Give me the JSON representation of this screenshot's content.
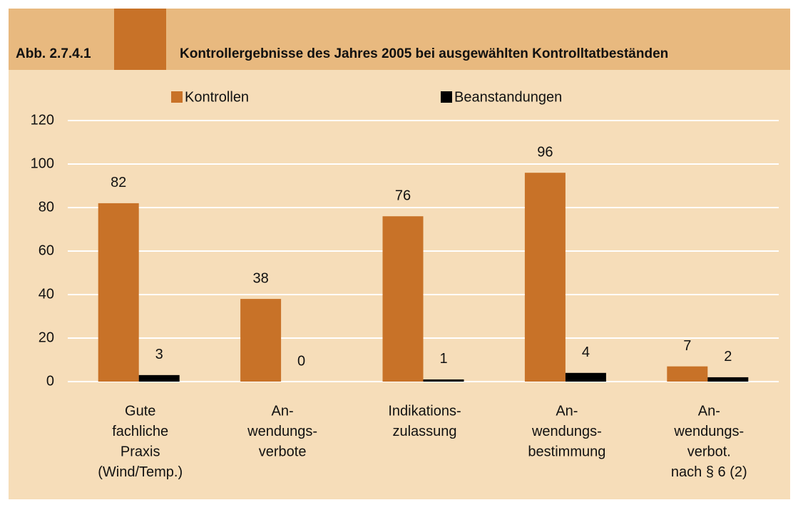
{
  "chart_data": {
    "type": "bar",
    "figure_label": "Abb. 2.7.4.1",
    "title": "Kontrollergebnisse des Jahres 2005 bei ausgewählten Kontrolltatbeständen",
    "categories": [
      [
        "Gute",
        "fachliche",
        "Praxis",
        "(Wind/Temp.)"
      ],
      [
        "An-",
        "wendungs-",
        "verbote"
      ],
      [
        "Indikations-",
        "zulassung"
      ],
      [
        "An-",
        "wendungs-",
        "bestimmung"
      ],
      [
        "An-",
        "wendungs-",
        "verbot.",
        "nach § 6 (2)"
      ]
    ],
    "series": [
      {
        "name": "Kontrollen",
        "color": "#c87228",
        "values": [
          82,
          38,
          76,
          96,
          7
        ]
      },
      {
        "name": "Beanstandungen",
        "color": "#000000",
        "values": [
          3,
          0,
          1,
          4,
          2
        ]
      }
    ],
    "ylim": [
      0,
      120
    ],
    "yticks": [
      0,
      20,
      40,
      60,
      80,
      100,
      120
    ],
    "grid": true,
    "legend": "top"
  }
}
